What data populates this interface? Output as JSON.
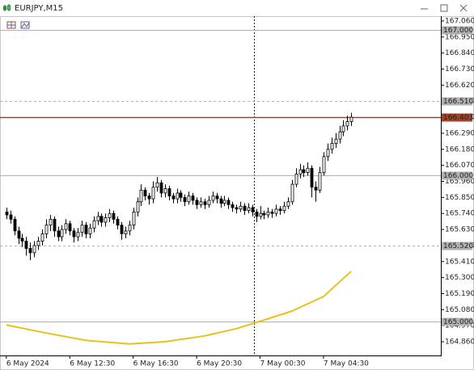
{
  "chart_data": {
    "type": "candlestick",
    "title": "EURJPY,M15",
    "candles": [
      [
        165.75,
        165.78,
        165.7,
        165.73
      ],
      [
        165.73,
        165.76,
        165.67,
        165.7
      ],
      [
        165.7,
        165.72,
        165.59,
        165.62
      ],
      [
        165.62,
        165.65,
        165.53,
        165.57
      ],
      [
        165.57,
        165.6,
        165.51,
        165.55
      ],
      [
        165.55,
        165.58,
        165.45,
        165.5
      ],
      [
        165.5,
        165.54,
        165.42,
        165.47
      ],
      [
        165.47,
        165.55,
        165.44,
        165.52
      ],
      [
        165.52,
        165.58,
        165.49,
        165.55
      ],
      [
        165.55,
        165.63,
        165.52,
        165.6
      ],
      [
        165.6,
        165.7,
        165.57,
        165.66
      ],
      [
        165.66,
        165.73,
        165.62,
        165.7
      ],
      [
        165.7,
        165.72,
        165.58,
        165.62
      ],
      [
        165.62,
        165.65,
        165.55,
        165.58
      ],
      [
        165.58,
        165.66,
        165.55,
        165.63
      ],
      [
        165.63,
        165.7,
        165.6,
        165.67
      ],
      [
        165.67,
        165.69,
        165.59,
        165.62
      ],
      [
        165.62,
        165.64,
        165.54,
        165.58
      ],
      [
        165.58,
        165.64,
        165.55,
        165.61
      ],
      [
        165.61,
        165.69,
        165.58,
        165.66
      ],
      [
        165.66,
        165.68,
        165.57,
        165.6
      ],
      [
        165.6,
        165.67,
        165.57,
        165.64
      ],
      [
        165.64,
        165.72,
        165.61,
        165.69
      ],
      [
        165.69,
        165.75,
        165.66,
        165.72
      ],
      [
        165.72,
        165.74,
        165.65,
        165.68
      ],
      [
        165.68,
        165.74,
        165.65,
        165.71
      ],
      [
        165.71,
        165.77,
        165.68,
        165.74
      ],
      [
        165.74,
        165.76,
        165.67,
        165.7
      ],
      [
        165.7,
        165.72,
        165.63,
        165.66
      ],
      [
        165.66,
        165.68,
        165.56,
        165.6
      ],
      [
        165.6,
        165.65,
        165.57,
        165.62
      ],
      [
        165.62,
        165.69,
        165.59,
        165.66
      ],
      [
        165.66,
        165.78,
        165.63,
        165.75
      ],
      [
        165.75,
        165.85,
        165.72,
        165.82
      ],
      [
        165.82,
        165.94,
        165.79,
        165.9
      ],
      [
        165.9,
        165.92,
        165.83,
        165.86
      ],
      [
        165.86,
        165.88,
        165.8,
        165.84
      ],
      [
        165.84,
        165.96,
        165.81,
        165.92
      ],
      [
        165.92,
        165.99,
        165.89,
        165.95
      ],
      [
        165.95,
        165.97,
        165.85,
        165.88
      ],
      [
        165.88,
        165.94,
        165.85,
        165.91
      ],
      [
        165.91,
        165.93,
        165.83,
        165.86
      ],
      [
        165.86,
        165.88,
        165.81,
        165.84
      ],
      [
        165.84,
        165.91,
        165.81,
        165.88
      ],
      [
        165.88,
        165.9,
        165.82,
        165.85
      ],
      [
        165.85,
        165.87,
        165.79,
        165.82
      ],
      [
        165.82,
        165.89,
        165.8,
        165.86
      ],
      [
        165.86,
        165.88,
        165.8,
        165.83
      ],
      [
        165.83,
        165.85,
        165.77,
        165.8
      ],
      [
        165.8,
        165.85,
        165.78,
        165.82
      ],
      [
        165.82,
        165.84,
        165.77,
        165.8
      ],
      [
        165.8,
        165.86,
        165.78,
        165.83
      ],
      [
        165.83,
        165.89,
        165.81,
        165.86
      ],
      [
        165.86,
        165.88,
        165.81,
        165.84
      ],
      [
        165.84,
        165.86,
        165.78,
        165.81
      ],
      [
        165.81,
        165.86,
        165.79,
        165.83
      ],
      [
        165.83,
        165.85,
        165.77,
        165.8
      ],
      [
        165.8,
        165.82,
        165.75,
        165.78
      ],
      [
        165.78,
        165.8,
        165.74,
        165.77
      ],
      [
        165.77,
        165.82,
        165.75,
        165.79
      ],
      [
        165.79,
        165.81,
        165.73,
        165.76
      ],
      [
        165.76,
        165.81,
        165.74,
        165.78
      ],
      [
        165.78,
        165.8,
        165.72,
        165.75
      ],
      [
        165.75,
        165.77,
        165.68,
        165.72
      ],
      [
        165.72,
        165.79,
        165.7,
        165.74
      ],
      [
        165.74,
        165.76,
        165.7,
        165.73
      ],
      [
        165.73,
        165.78,
        165.71,
        165.75
      ],
      [
        165.75,
        165.77,
        165.71,
        165.74
      ],
      [
        165.74,
        165.8,
        165.72,
        165.77
      ],
      [
        165.77,
        165.79,
        165.73,
        165.76
      ],
      [
        165.76,
        165.82,
        165.74,
        165.79
      ],
      [
        165.79,
        165.85,
        165.77,
        165.82
      ],
      [
        165.82,
        165.97,
        165.8,
        165.94
      ],
      [
        165.94,
        166.05,
        165.92,
        166.01
      ],
      [
        166.01,
        166.08,
        165.98,
        166.04
      ],
      [
        166.04,
        166.07,
        165.99,
        166.02
      ],
      [
        166.02,
        166.09,
        166.0,
        166.05
      ],
      [
        166.05,
        166.07,
        165.85,
        165.92
      ],
      [
        165.92,
        165.96,
        165.82,
        165.9
      ],
      [
        165.9,
        166.06,
        165.88,
        166.02
      ],
      [
        166.02,
        166.16,
        166.0,
        166.13
      ],
      [
        166.13,
        166.22,
        166.1,
        166.18
      ],
      [
        166.18,
        166.26,
        166.15,
        166.22
      ],
      [
        166.22,
        166.29,
        166.19,
        166.25
      ],
      [
        166.25,
        166.34,
        166.22,
        166.3
      ],
      [
        166.3,
        166.38,
        166.27,
        166.34
      ],
      [
        166.34,
        166.41,
        166.31,
        166.37
      ],
      [
        166.37,
        166.43,
        166.34,
        166.4
      ]
    ],
    "bull_color": "#ffffff",
    "bear_color": "#000000",
    "moving_average": {
      "color": "#e8c21a",
      "x": [
        0,
        10,
        20,
        31,
        40,
        50,
        58,
        64,
        72,
        80,
        87
      ],
      "values": [
        164.975,
        164.92,
        164.87,
        164.845,
        164.86,
        164.9,
        164.95,
        165.0,
        165.07,
        165.17,
        165.344
      ]
    },
    "levels": [
      {
        "value": 167.0,
        "label": "167.000",
        "color": "#b0b0b0",
        "style": "solid"
      },
      {
        "value": 166.51,
        "label": "166.510",
        "color": "#b0b0b0",
        "style": "dashed"
      },
      {
        "value": 166.403,
        "label": "166.403",
        "color": "#a0432a",
        "style": "solid"
      },
      {
        "value": 166.0,
        "label": "166.000",
        "color": "#b0b0b0",
        "style": "solid"
      },
      {
        "value": 165.52,
        "label": "165.520",
        "color": "#b0b0b0",
        "style": "dashed"
      },
      {
        "value": 165.0,
        "label": "165.000",
        "color": "#b0b0b0",
        "style": "solid"
      }
    ],
    "xlim": [
      -1.6,
      109.6
    ],
    "xticks": [
      {
        "value": 0,
        "label": "6 May 2024"
      },
      {
        "value": 16,
        "label": "6 May 12:30"
      },
      {
        "value": 32,
        "label": "6 May 16:30"
      },
      {
        "value": 48,
        "label": "6 May 20:30"
      },
      {
        "value": 64,
        "label": "7 May 00:30"
      },
      {
        "value": 80,
        "label": "7 May 04:30"
      }
    ],
    "ylim": [
      164.766,
      167.093
    ],
    "yticks": [
      {
        "value": 167.06,
        "label": "167.060"
      },
      {
        "value": 166.95,
        "label": "166.950"
      },
      {
        "value": 166.84,
        "label": "166.840"
      },
      {
        "value": 166.73,
        "label": "166.730"
      },
      {
        "value": 166.62,
        "label": "166.620"
      },
      {
        "value": 166.51,
        "label": "166.510"
      },
      {
        "value": 166.4,
        "label": "166.400"
      },
      {
        "value": 166.29,
        "label": "166.290"
      },
      {
        "value": 166.18,
        "label": "166.180"
      },
      {
        "value": 166.07,
        "label": "166.070"
      },
      {
        "value": 165.96,
        "label": "165.960"
      },
      {
        "value": 165.85,
        "label": "165.850"
      },
      {
        "value": 165.74,
        "label": "165.740"
      },
      {
        "value": 165.63,
        "label": "165.630"
      },
      {
        "value": 165.52,
        "label": "165.520"
      },
      {
        "value": 165.41,
        "label": "165.410"
      },
      {
        "value": 165.3,
        "label": "165.300"
      },
      {
        "value": 165.19,
        "label": "165.190"
      },
      {
        "value": 165.08,
        "label": "165.080"
      },
      {
        "value": 164.97,
        "label": "164.970"
      },
      {
        "value": 164.86,
        "label": "164.860"
      }
    ]
  }
}
